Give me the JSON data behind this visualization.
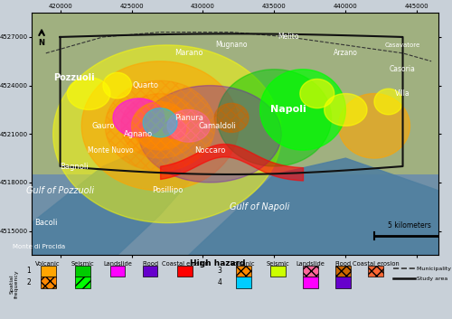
{
  "title": "High hazard",
  "legend_title": "High hazard",
  "spatial_freq_label": "Spatial\nfrequency",
  "col_headers": [
    "Volcanic",
    "Seismic",
    "Landslide",
    "Flood",
    "Coastal erosion"
  ],
  "single_colors_1": [
    "#FFA500",
    "#00CC00",
    "#FF00FF",
    "#6600CC",
    "#FF0000"
  ],
  "single_colors_2": [
    "#FF8800",
    "#00FF00",
    null,
    null,
    null
  ],
  "single_hatch_2": [
    "xxx",
    "///",
    null,
    null,
    null
  ],
  "combo_colors_3": [
    "#FF8800",
    "#CCFF00",
    "#FF6699",
    "#CC6600",
    "#FF6633"
  ],
  "combo_hatch_3": [
    "xxx",
    "",
    "xxx",
    "xxx",
    "xxx"
  ],
  "combo_colors_4": [
    "#00CCFF",
    null,
    "#FF00FF",
    "#6600CC",
    null
  ],
  "x_ticks": [
    420000,
    425000,
    430000,
    435000,
    440000,
    445000
  ],
  "y_ticks": [
    4515000,
    4518000,
    4521000,
    4524000,
    4527000
  ],
  "scalebar_label": "5 kilometers",
  "map_extent": [
    418000,
    446500,
    4513500,
    4528500
  ],
  "map_labels": [
    [
      421000,
      4524500,
      "Pozzuoli",
      7,
      "white",
      "bold",
      "normal"
    ],
    [
      425500,
      4521000,
      "Agnano",
      6,
      "white",
      "normal",
      "normal"
    ],
    [
      423000,
      4521500,
      "Gauro",
      6,
      "white",
      "normal",
      "normal"
    ],
    [
      423500,
      4520000,
      "Monte Nuovo",
      5.5,
      "white",
      "normal",
      "normal"
    ],
    [
      421000,
      4519000,
      "Bagnoli",
      6,
      "white",
      "normal",
      "normal"
    ],
    [
      436000,
      4522500,
      "Napoli",
      8,
      "white",
      "bold",
      "normal"
    ],
    [
      429000,
      4522000,
      "Pianura",
      6,
      "white",
      "normal",
      "normal"
    ],
    [
      431000,
      4521500,
      "Camaldoli",
      6,
      "white",
      "normal",
      "normal"
    ],
    [
      430500,
      4520000,
      "Noccaro",
      6,
      "white",
      "normal",
      "normal"
    ],
    [
      419000,
      4515500,
      "Bacoli",
      6,
      "white",
      "normal",
      "normal"
    ],
    [
      418500,
      4514000,
      "Monte di Procida",
      5,
      "white",
      "normal",
      "normal"
    ],
    [
      420000,
      4517500,
      "Gulf of Pozzuoli",
      7,
      "white",
      "normal",
      "italic"
    ],
    [
      434000,
      4516500,
      "Gulf of Napoli",
      7,
      "white",
      "normal",
      "italic"
    ],
    [
      427500,
      4517500,
      "Posillipo",
      6,
      "white",
      "normal",
      "normal"
    ],
    [
      426000,
      4524000,
      "Quarto",
      6,
      "white",
      "normal",
      "normal"
    ],
    [
      432000,
      4526500,
      "Mugnano",
      5.5,
      "white",
      "normal",
      "normal"
    ],
    [
      436000,
      4527000,
      "Melito",
      5.5,
      "white",
      "normal",
      "normal"
    ],
    [
      440000,
      4526000,
      "Arzano",
      5.5,
      "white",
      "normal",
      "normal"
    ],
    [
      444000,
      4526500,
      "Casavatore",
      5,
      "white",
      "normal",
      "normal"
    ],
    [
      444000,
      4525000,
      "Casoria",
      5.5,
      "white",
      "normal",
      "normal"
    ],
    [
      444000,
      4523500,
      "Villa",
      5.5,
      "white",
      "normal",
      "normal"
    ],
    [
      429000,
      4526000,
      "Marano",
      6,
      "white",
      "normal",
      "normal"
    ]
  ]
}
